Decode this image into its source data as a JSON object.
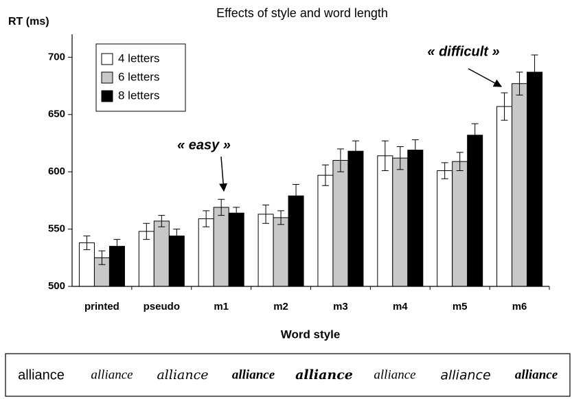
{
  "chart_data": {
    "type": "bar",
    "title": "Effects of style and word length",
    "y_label": "RT (ms)",
    "x_label": "Word style",
    "categories": [
      "printed",
      "pseudo",
      "m1",
      "m2",
      "m3",
      "m4",
      "m5",
      "m6"
    ],
    "series": [
      {
        "name": "4 letters",
        "color": "#ffffff",
        "values": [
          538,
          548,
          559,
          563,
          597,
          614,
          601,
          657
        ],
        "errors": [
          6,
          7,
          7,
          8,
          9,
          13,
          7,
          12
        ]
      },
      {
        "name": "6 letters",
        "color": "#c8c8c8",
        "values": [
          525,
          557,
          569,
          560,
          610,
          612,
          609,
          677
        ],
        "errors": [
          6,
          5,
          7,
          6,
          10,
          10,
          8,
          10
        ]
      },
      {
        "name": "8 letters",
        "color": "#000000",
        "values": [
          535,
          544,
          564,
          579,
          618,
          619,
          632,
          687
        ],
        "errors": [
          6,
          6,
          5,
          10,
          9,
          9,
          10,
          15
        ]
      }
    ],
    "ylim": [
      500,
      720
    ],
    "yticks": [
      500,
      550,
      600,
      650,
      700
    ],
    "legend": "upper left",
    "annotations": [
      {
        "text": "« easy »",
        "category": 2
      },
      {
        "text": "« difficult »",
        "category": 7
      }
    ]
  },
  "samples": [
    "alliance",
    "alliance",
    "alliance",
    "alliance",
    "alliance",
    "alliance",
    "alliance",
    "alliance"
  ]
}
